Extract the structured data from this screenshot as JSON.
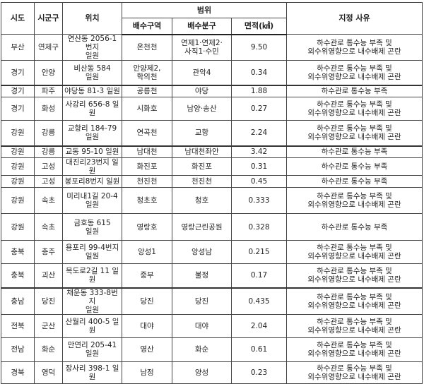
{
  "header": {
    "sido": "시도",
    "sigungu": "시군구",
    "location": "위치",
    "scope": "범위",
    "drainage_area": "배수구역",
    "drainage_sub": "배수분구",
    "area": "면적(㎢)",
    "reason": "지정 사유"
  },
  "rows": [
    {
      "sido": "부산",
      "sigungu": "연제구",
      "location": "연산동 2056-1번지\n일원",
      "drainage_area": "온천천",
      "drainage_sub": "연제1·연제2·\n사직1·수민",
      "area": "9.50",
      "reason": "하수관로 통수능 부족 및\n외수위영향으로 내수배제 곤란"
    },
    {
      "sido": "경기",
      "sigungu": "안양",
      "location": "비산동 584\n일원",
      "drainage_area": "안양제2,\n학의천",
      "drainage_sub": "관악4",
      "area": "0.34",
      "reason": "하수관로 통수능 부족 및\n외수위영향으로 내수배제 곤란"
    },
    {
      "sido": "경기",
      "sigungu": "파주",
      "location": "야당동 81-3 일원",
      "drainage_area": "공릉천",
      "drainage_sub": "야당",
      "area": "1.88",
      "reason": "하수관로 통수능 부족"
    },
    {
      "sido": "경기",
      "sigungu": "화성",
      "location": "사강리 656-8 일원",
      "drainage_area": "시화호",
      "drainage_sub": "남양·송산",
      "area": "0.27",
      "reason": "하수관로 통수능 부족 및\n외수위영향으로 내수배제 곤란"
    },
    {
      "sido": "강원",
      "sigungu": "강릉",
      "location": "교항리 184-79 일원",
      "drainage_area": "연곡천",
      "drainage_sub": "교항",
      "area": "2.24",
      "reason": "하수관로 통수능 부족 및\n외수위영향으로 내수배제 곤란"
    },
    {
      "sido": "강원",
      "sigungu": "강릉",
      "location": "교동 95-10 일원",
      "drainage_area": "남대천",
      "drainage_sub": "남대천좌안",
      "area": "3.42",
      "reason": "하수관로 통수능 부족"
    },
    {
      "sido": "강원",
      "sigungu": "고성",
      "location": "대진리23번지 일원",
      "drainage_area": "화진포",
      "drainage_sub": "화진포",
      "area": "0.31",
      "reason": "하수관로 통수능 부족"
    },
    {
      "sido": "강원",
      "sigungu": "고성",
      "location": "봉포리8번지 일원",
      "drainage_area": "천진천",
      "drainage_sub": "천진천",
      "area": "0.45",
      "reason": "하수관로 통수능 부족"
    },
    {
      "sido": "강원",
      "sigungu": "속초",
      "location": "미리내1길 20-4\n일원",
      "drainage_area": "청초호",
      "drainage_sub": "청호",
      "area": "0.333",
      "reason": "하수관로 통수능 부족 및\n외수위영향으로 내수배제 곤란"
    },
    {
      "sido": "강원",
      "sigungu": "속초",
      "location": "금호동 615\n일원",
      "drainage_area": "영랑호",
      "drainage_sub": "영랑근린공원",
      "area": "0.328",
      "reason": "하수관로 통수능 부족"
    },
    {
      "sido": "충북",
      "sigungu": "충주",
      "location": "용포리 99-4번지\n일원",
      "drainage_area": "앙성1",
      "drainage_sub": "앙성남",
      "area": "0.215",
      "reason": "하수관로 통수능 부족 및\n외수위영향으로 내수배제 곤란"
    },
    {
      "sido": "충북",
      "sigungu": "괴산",
      "location": "목도로2길 11 일원",
      "drainage_area": "중부",
      "drainage_sub": "불정",
      "area": "0.17",
      "reason": "하수관로 통수능 부족 및\n외수위영향으로 내수배제 곤란"
    },
    {
      "sido": "충남",
      "sigungu": "당진",
      "location": "채운동 333-8번지\n일원",
      "drainage_area": "당진",
      "drainage_sub": "당진",
      "area": "0.435",
      "reason": "하수관로 통수능 부족 및\n외수위영향으로 내수배제 곤란"
    },
    {
      "sido": "전북",
      "sigungu": "군산",
      "location": "산월리 400-5 일원",
      "drainage_area": "대야",
      "drainage_sub": "대야",
      "area": "2.04",
      "reason": "하수관로 통수능 부족 및\n외수위영향으로 내수배제 곤란"
    },
    {
      "sido": "전남",
      "sigungu": "화순",
      "location": "만연리 205-41\n일원",
      "drainage_area": "영산",
      "drainage_sub": "화순",
      "area": "0.61",
      "reason": "하수관로 통수능 부족 및\n외수위영향으로 내수배제 곤란"
    },
    {
      "sido": "경북",
      "sigungu": "영덕",
      "location": "장사리 398-1 일원",
      "drainage_area": "남정",
      "drainage_sub": "양성",
      "area": "0.23",
      "reason": "하수관로 통수능 부족 및\n외수위영향으로 내수배제 곤란"
    }
  ]
}
